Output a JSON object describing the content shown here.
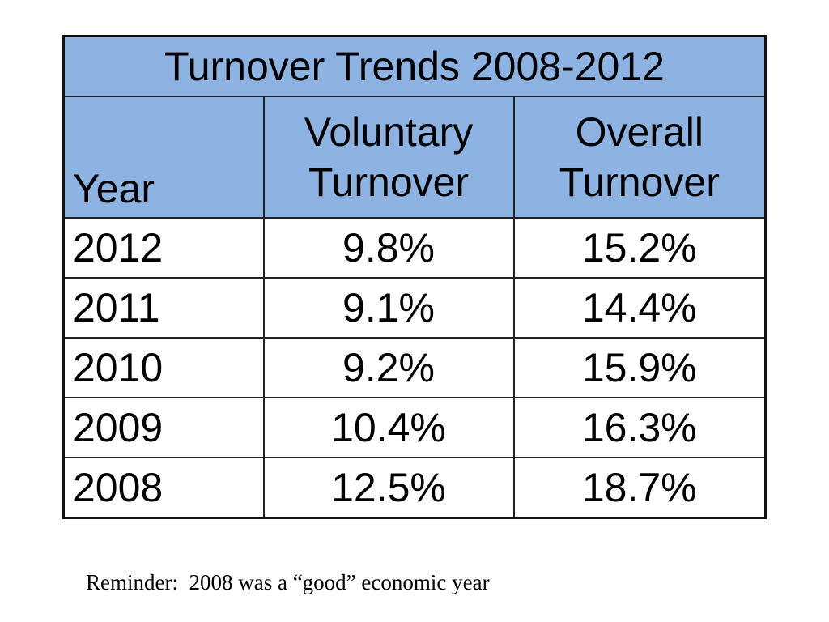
{
  "table": {
    "title": "Turnover Trends 2008-2012",
    "headers": {
      "year": "Year",
      "voluntary_line1": "Voluntary",
      "voluntary_line2": "Turnover",
      "overall_line1": "Overall",
      "overall_line2": "Turnover"
    },
    "rows": [
      {
        "year": "2012",
        "voluntary": "9.8%",
        "overall": "15.2%"
      },
      {
        "year": "2011",
        "voluntary": "9.1%",
        "overall": "14.4%"
      },
      {
        "year": "2010",
        "voluntary": "9.2%",
        "overall": "15.9%"
      },
      {
        "year": "2009",
        "voluntary": "10.4%",
        "overall": "16.3%"
      },
      {
        "year": "2008",
        "voluntary": "12.5%",
        "overall": "18.7%"
      }
    ]
  },
  "footnote": "Reminder:  2008 was a “good” economic year",
  "colors": {
    "header_fill": "#8db3e2",
    "border": "#222222"
  }
}
